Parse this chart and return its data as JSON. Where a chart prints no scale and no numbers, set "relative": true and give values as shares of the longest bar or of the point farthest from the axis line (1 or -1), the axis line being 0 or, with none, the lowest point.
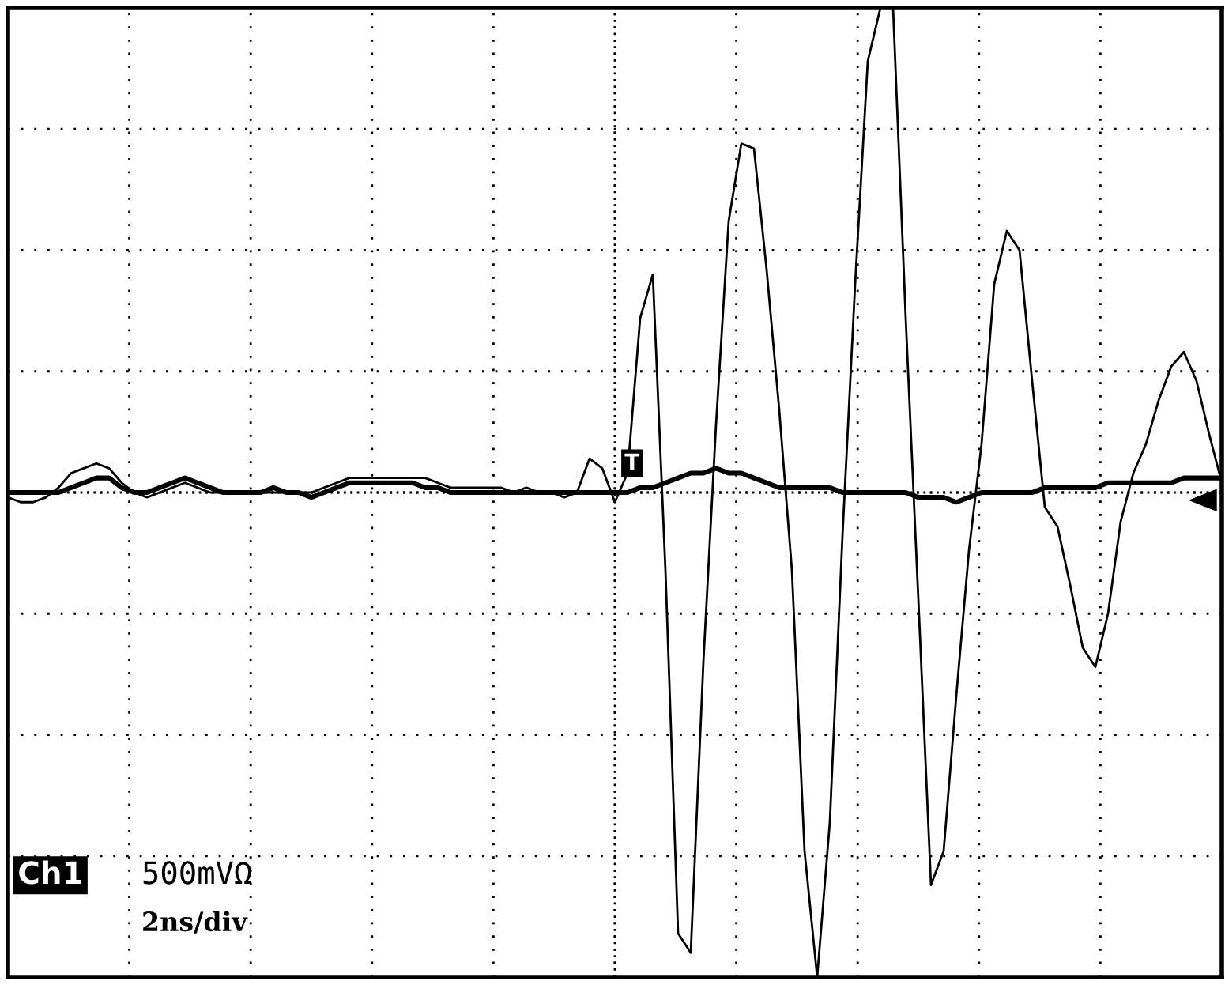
{
  "chart_data": {
    "type": "line",
    "relative": true,
    "grid": true,
    "legend": false,
    "marker": "none",
    "line_style": "solid",
    "categories": [
      null,
      null,
      null,
      null,
      null,
      null,
      null,
      null,
      null,
      null,
      null,
      null,
      null,
      null,
      null,
      null,
      null,
      null,
      null,
      null,
      null,
      null,
      null,
      null,
      null,
      null,
      null,
      null,
      null,
      null,
      null,
      null,
      null,
      null,
      null,
      null,
      null,
      null,
      null,
      null,
      null,
      null,
      null,
      null,
      null,
      null,
      null,
      null,
      null,
      null,
      null,
      null,
      null,
      null,
      null,
      null,
      null,
      null,
      null,
      null,
      null,
      null,
      null,
      null,
      null,
      null,
      null,
      null,
      null,
      null,
      null,
      null,
      null,
      null,
      null,
      null,
      null,
      null,
      null,
      null,
      null,
      null,
      null,
      null,
      null,
      null,
      null,
      null,
      null,
      null,
      null,
      null,
      null,
      null,
      null,
      null,
      null
    ],
    "series": [
      {
        "color": "#000000",
        "values": [
          -0.01,
          -0.02,
          -0.02,
          -0.01,
          0.01,
          0.04,
          0.05,
          0.06,
          0.05,
          0.02,
          0,
          -0.01,
          0,
          0.01,
          0.02,
          0.01,
          0,
          0,
          0,
          0,
          0,
          0,
          0,
          0,
          0,
          0.01,
          0.02,
          0.03,
          0.03,
          0.03,
          0.03,
          0.03,
          0.03,
          0.03,
          0.02,
          0.01,
          0.01,
          0.01,
          0.01,
          0.01,
          0,
          0.01,
          0,
          0,
          -0.01,
          0,
          0.07,
          0.05,
          -0.02,
          0.04,
          0.36,
          0.45,
          -0.16,
          -0.91,
          -0.95,
          -0.35,
          0.14,
          0.56,
          0.72,
          0.71,
          0.46,
          0.17,
          -0.16,
          -0.74,
          -1,
          -0.68,
          -0.09,
          0.43,
          0.89,
          1,
          1,
          0.36,
          -0.22,
          -0.81,
          -0.74,
          -0.42,
          -0.12,
          0.1,
          0.43,
          0.54,
          0.5,
          0.23,
          -0.03,
          -0.07,
          -0.19,
          -0.32,
          -0.36,
          -0.25,
          -0.06,
          0.04,
          0.1,
          0.19,
          0.26,
          0.29,
          0.23,
          0.12,
          0.02
        ]
      },
      {
        "color": "#000000",
        "values": [
          0,
          0,
          0,
          0,
          0,
          0.01,
          0.02,
          0.03,
          0.03,
          0.01,
          0,
          0,
          0.01,
          0.02,
          0.03,
          0.02,
          0.01,
          0,
          0,
          0,
          0,
          0.01,
          0,
          0,
          -0.01,
          0,
          0.01,
          0.02,
          0.02,
          0.02,
          0.02,
          0.02,
          0.02,
          0.01,
          0.01,
          0,
          0,
          0,
          0,
          0,
          0,
          0,
          0,
          0,
          0,
          0,
          0,
          0,
          0,
          0,
          0.01,
          0.01,
          0.02,
          0.03,
          0.04,
          0.04,
          0.05,
          0.04,
          0.04,
          0.03,
          0.02,
          0.01,
          0.01,
          0.01,
          0.01,
          0.01,
          0,
          0,
          0,
          0,
          0,
          0,
          -0.01,
          -0.01,
          -0.01,
          -0.02,
          -0.01,
          0,
          0,
          0,
          0,
          0,
          0.01,
          0.01,
          0.01,
          0.01,
          0.01,
          0.02,
          0.02,
          0.02,
          0.02,
          0.02,
          0.02,
          0.03,
          0.03,
          0.03,
          0.03
        ]
      }
    ],
    "annotations": [
      "Ch1",
      "500mVΩ",
      "2ns/div",
      "T"
    ]
  }
}
